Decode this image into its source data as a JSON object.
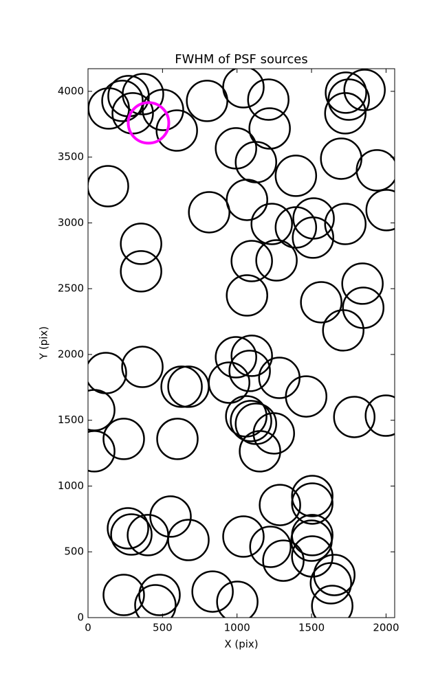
{
  "chart_data": {
    "type": "scatter",
    "title": "FWHM of PSF sources",
    "x_label": "X (pix)",
    "y_label": "Y (pix)",
    "xlim": [
      0,
      2058
    ],
    "ylim": [
      0,
      4172
    ],
    "xticks": [
      0,
      500,
      1000,
      1500,
      2000
    ],
    "yticks": [
      0,
      500,
      1000,
      1500,
      2000,
      2500,
      3000,
      3500,
      4000
    ],
    "grid": false,
    "series": [
      {
        "color": "#000000",
        "x": [
          139,
          231,
          272,
          369,
          300,
          503,
          596,
          799,
          1043,
          1210,
          1219,
          993,
          1127,
          1395,
          1699,
          1939,
          1731,
          1856,
          1750,
          1727,
          134,
          813,
          1067,
          1233,
          1395,
          1514,
          1510,
          1727,
          2004,
          356,
          356,
          1099,
          1265,
          1067,
          1565,
          1842,
          1847,
          1713,
          120,
          365,
          628,
          674,
          947,
          993,
          1099,
          1085,
          1284,
          1464,
          42,
          240,
          600,
          42,
          1062,
          1094,
          1127,
          1247,
          1154,
          1787,
          1999,
          1505,
          1505,
          1288,
          554,
          268,
          291,
          402,
          674,
          1043,
          1224,
          1311,
          1505,
          1500,
          1505,
          1653,
          1630,
          1639,
          240,
          480,
          452,
          836,
          1002
        ],
        "y": [
          3870,
          3927,
          3964,
          3979,
          3833,
          3859,
          3702,
          3927,
          4031,
          3937,
          3718,
          3567,
          3462,
          3358,
          3488,
          3400,
          3990,
          4010,
          3937,
          3833,
          3279,
          3081,
          3175,
          2992,
          2966,
          3034,
          2888,
          2992,
          3097,
          2841,
          2632,
          2710,
          2715,
          2449,
          2397,
          2538,
          2355,
          2183,
          1859,
          1906,
          1755,
          1755,
          1786,
          1979,
          1990,
          1875,
          1822,
          1681,
          1577,
          1358,
          1358,
          1264,
          1530,
          1494,
          1473,
          1400,
          1264,
          1525,
          1535,
          924,
          867,
          856,
          768,
          679,
          632,
          627,
          590,
          616,
          538,
          433,
          627,
          585,
          465,
          324,
          261,
          89,
          172,
          172,
          94,
          198,
          120
        ]
      },
      {
        "color": "#ff00ff",
        "x": [
          406
        ],
        "y": [
          3760
        ]
      }
    ]
  }
}
